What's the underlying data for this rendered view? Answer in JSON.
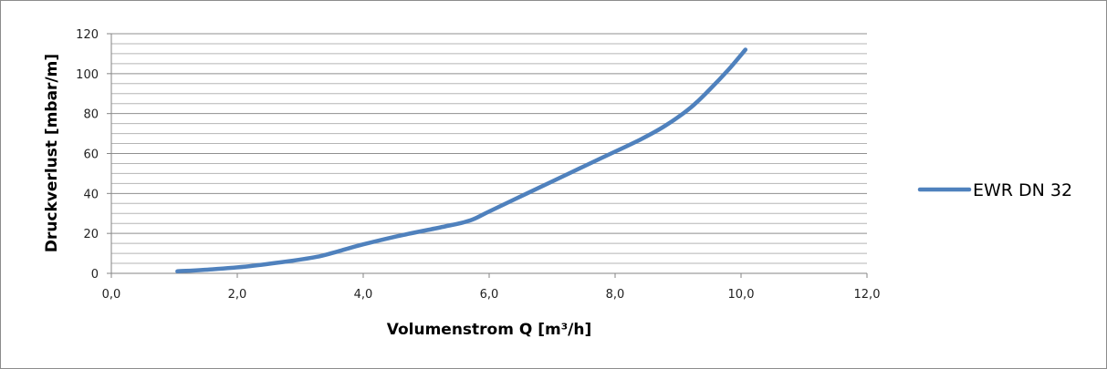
{
  "chart_data": {
    "type": "line",
    "xlabel": "Volumenstrom Q [m³/h]",
    "ylabel": "Druckverlust [mbar/m]",
    "xlim": [
      0,
      12
    ],
    "ylim": [
      0,
      120
    ],
    "x_ticks": [
      "0,0",
      "2,0",
      "4,0",
      "6,0",
      "8,0",
      "10,0",
      "12,0"
    ],
    "y_ticks": [
      "0",
      "20",
      "40",
      "60",
      "80",
      "100",
      "120"
    ],
    "grid": "horizontal major and minor",
    "legend_position": "right",
    "series": [
      {
        "name": "EWR DN 32",
        "color": "#4f81bd",
        "points": [
          [
            1.05,
            1
          ],
          [
            1.6,
            2
          ],
          [
            2.2,
            3.6
          ],
          [
            2.8,
            6
          ],
          [
            3.3,
            8.5
          ],
          [
            3.6,
            11
          ],
          [
            4.0,
            14.5
          ],
          [
            4.6,
            19
          ],
          [
            5.3,
            23.5
          ],
          [
            5.7,
            26.5
          ],
          [
            6.0,
            31
          ],
          [
            6.6,
            40
          ],
          [
            7.2,
            49
          ],
          [
            7.8,
            58
          ],
          [
            8.4,
            67
          ],
          [
            8.8,
            74
          ],
          [
            9.2,
            83
          ],
          [
            9.5,
            92
          ],
          [
            9.8,
            102
          ],
          [
            10.07,
            112
          ]
        ]
      }
    ]
  }
}
